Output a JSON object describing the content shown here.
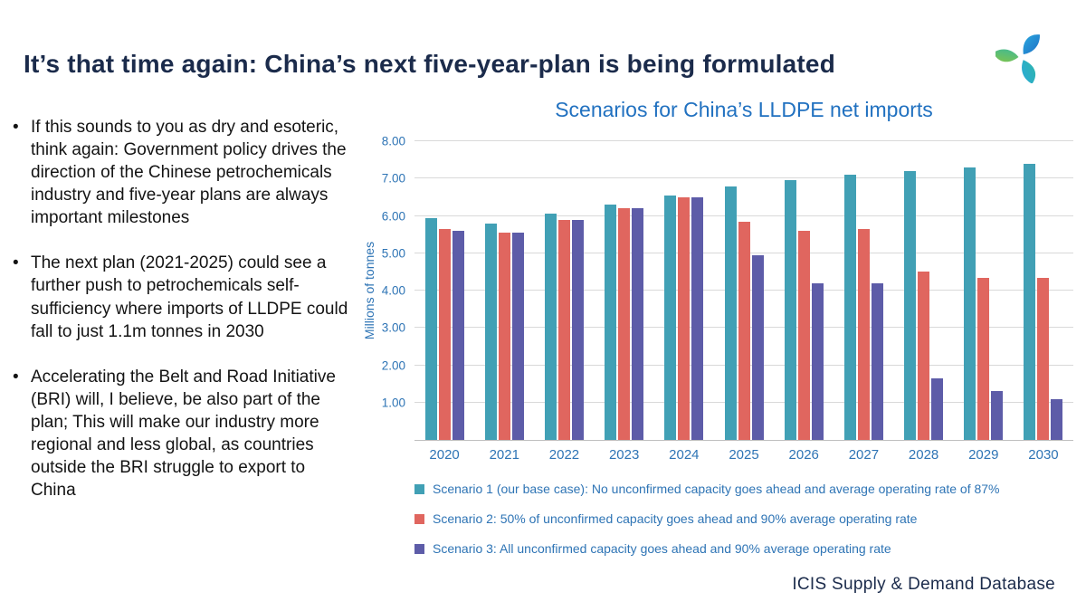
{
  "header": {
    "title": "It’s that time again: China’s next five-year-plan is being formulated",
    "logo_icon": "icis-swirl-logo"
  },
  "bullets": [
    "If this sounds to you as dry and esoteric, think again: Government policy drives the direction of the Chinese petrochemicals industry and five-year plans are always important milestones",
    "The next plan (2021-2025) could see a further push to petrochemicals self-sufficiency where imports of LLDPE could fall to just 1.1m tonnes in 2030",
    "Accelerating the Belt and Road Initiative (BRI) will, I believe, be also part of the plan; This will make our industry more regional and less global, as countries outside the BRI struggle to export to China"
  ],
  "chart_data": {
    "type": "bar",
    "title": "Scenarios for China’s LLDPE net imports",
    "xlabel": "",
    "ylabel": "Millions of tonnes",
    "ylim": [
      0,
      8
    ],
    "yticks": [
      1,
      2,
      3,
      4,
      5,
      6,
      7,
      8
    ],
    "grid": true,
    "legend_position": "bottom-left",
    "categories": [
      "2020",
      "2021",
      "2022",
      "2023",
      "2024",
      "2025",
      "2026",
      "2027",
      "2028",
      "2029",
      "2030"
    ],
    "series": [
      {
        "name": "Scenario 1 (our base case): No unconfirmed capacity goes ahead and average operating rate of 87%",
        "color": "#41A0B5",
        "values": [
          5.95,
          5.8,
          6.05,
          6.3,
          6.55,
          6.8,
          6.95,
          7.1,
          7.2,
          7.3,
          7.4
        ]
      },
      {
        "name": "Scenario 2: 50% of unconfirmed capacity goes ahead and 90% average operating rate",
        "color": "#E0665F",
        "values": [
          5.65,
          5.55,
          5.9,
          6.2,
          6.5,
          5.85,
          5.6,
          5.65,
          4.5,
          4.35,
          4.35
        ]
      },
      {
        "name": "Scenario 3: All unconfirmed capacity goes ahead and 90% average operating rate",
        "color": "#5D5CA8",
        "values": [
          5.6,
          5.55,
          5.9,
          6.2,
          6.5,
          4.95,
          4.2,
          4.2,
          1.65,
          1.3,
          1.1
        ]
      }
    ]
  },
  "footer": {
    "source": "ICIS Supply & Demand Database"
  },
  "colors": {
    "title_text": "#1B2B4B",
    "chart_title_text": "#2171C0",
    "axis_text": "#2E74B5",
    "gridline": "#D9D9D9",
    "baseline": "#BFBFBF"
  }
}
